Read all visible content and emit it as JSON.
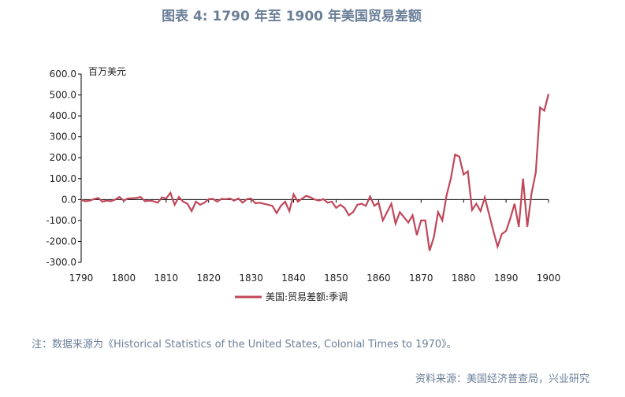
{
  "chart_data": {
    "type": "line",
    "title": "图表 4:  1790 年至 1900 年美国贸易差额",
    "y_label": "百万美元",
    "note": "注：数据来源为《Historical Statistics of the United States, Colonial Times to 1970》。",
    "source": "资料来源：美国经济普查局，兴业研究",
    "x": [
      1790,
      1791,
      1792,
      1793,
      1794,
      1795,
      1796,
      1797,
      1798,
      1799,
      1800,
      1801,
      1802,
      1803,
      1804,
      1805,
      1806,
      1807,
      1808,
      1809,
      1810,
      1811,
      1812,
      1813,
      1814,
      1815,
      1816,
      1817,
      1818,
      1819,
      1820,
      1821,
      1822,
      1823,
      1824,
      1825,
      1826,
      1827,
      1828,
      1829,
      1830,
      1831,
      1832,
      1833,
      1834,
      1835,
      1836,
      1837,
      1838,
      1839,
      1840,
      1841,
      1842,
      1843,
      1844,
      1845,
      1846,
      1847,
      1848,
      1849,
      1850,
      1851,
      1852,
      1853,
      1854,
      1855,
      1856,
      1857,
      1858,
      1859,
      1860,
      1861,
      1862,
      1863,
      1864,
      1865,
      1866,
      1867,
      1868,
      1869,
      1870,
      1871,
      1872,
      1873,
      1874,
      1875,
      1876,
      1877,
      1878,
      1879,
      1880,
      1881,
      1882,
      1883,
      1884,
      1885,
      1886,
      1887,
      1888,
      1889,
      1890,
      1891,
      1892,
      1893,
      1894,
      1895,
      1896,
      1897,
      1898,
      1899,
      1900
    ],
    "series": [
      {
        "name": "美国:贸易差额:季调",
        "color": "#c0475a",
        "values": [
          -2,
          -8,
          -5,
          2,
          8,
          -10,
          -5,
          -8,
          0,
          12,
          -5,
          5,
          6,
          8,
          12,
          -8,
          -5,
          -8,
          -15,
          10,
          5,
          32,
          -25,
          12,
          -10,
          -20,
          -55,
          -10,
          -25,
          -15,
          2,
          3,
          -10,
          3,
          2,
          5,
          -5,
          5,
          -15,
          2,
          5,
          -18,
          -15,
          -20,
          -25,
          -30,
          -65,
          -30,
          -10,
          -55,
          25,
          -10,
          5,
          18,
          10,
          0,
          -5,
          2,
          -15,
          -10,
          -40,
          -25,
          -40,
          -75,
          -60,
          -25,
          -20,
          -30,
          15,
          -30,
          -15,
          -100,
          -60,
          -20,
          -115,
          -60,
          -85,
          -110,
          -75,
          -170,
          -100,
          -100,
          -245,
          -180,
          -60,
          -100,
          20,
          100,
          215,
          205,
          120,
          135,
          -50,
          -20,
          -55,
          10,
          -70,
          -150,
          -225,
          -165,
          -150,
          -90,
          -20,
          -130,
          100,
          -130,
          30,
          130,
          440,
          425,
          505
        ]
      }
    ],
    "xlim": [
      1790,
      1900
    ],
    "xticks": [
      1790,
      1800,
      1810,
      1820,
      1830,
      1840,
      1850,
      1860,
      1870,
      1880,
      1890,
      1900
    ],
    "ylim": [
      -300,
      600
    ],
    "yticks": [
      {
        "value": -300,
        "label": "-300.0"
      },
      {
        "value": -200,
        "label": "-200.0"
      },
      {
        "value": -100,
        "label": "-100.0"
      },
      {
        "value": 0,
        "label": "0.0"
      },
      {
        "value": 100,
        "label": "100.0"
      },
      {
        "value": 200,
        "label": "200.0"
      },
      {
        "value": 300,
        "label": "300.0"
      },
      {
        "value": 400,
        "label": "400.0"
      },
      {
        "value": 500,
        "label": "500.0"
      },
      {
        "value": 600,
        "label": "600.0"
      }
    ]
  }
}
